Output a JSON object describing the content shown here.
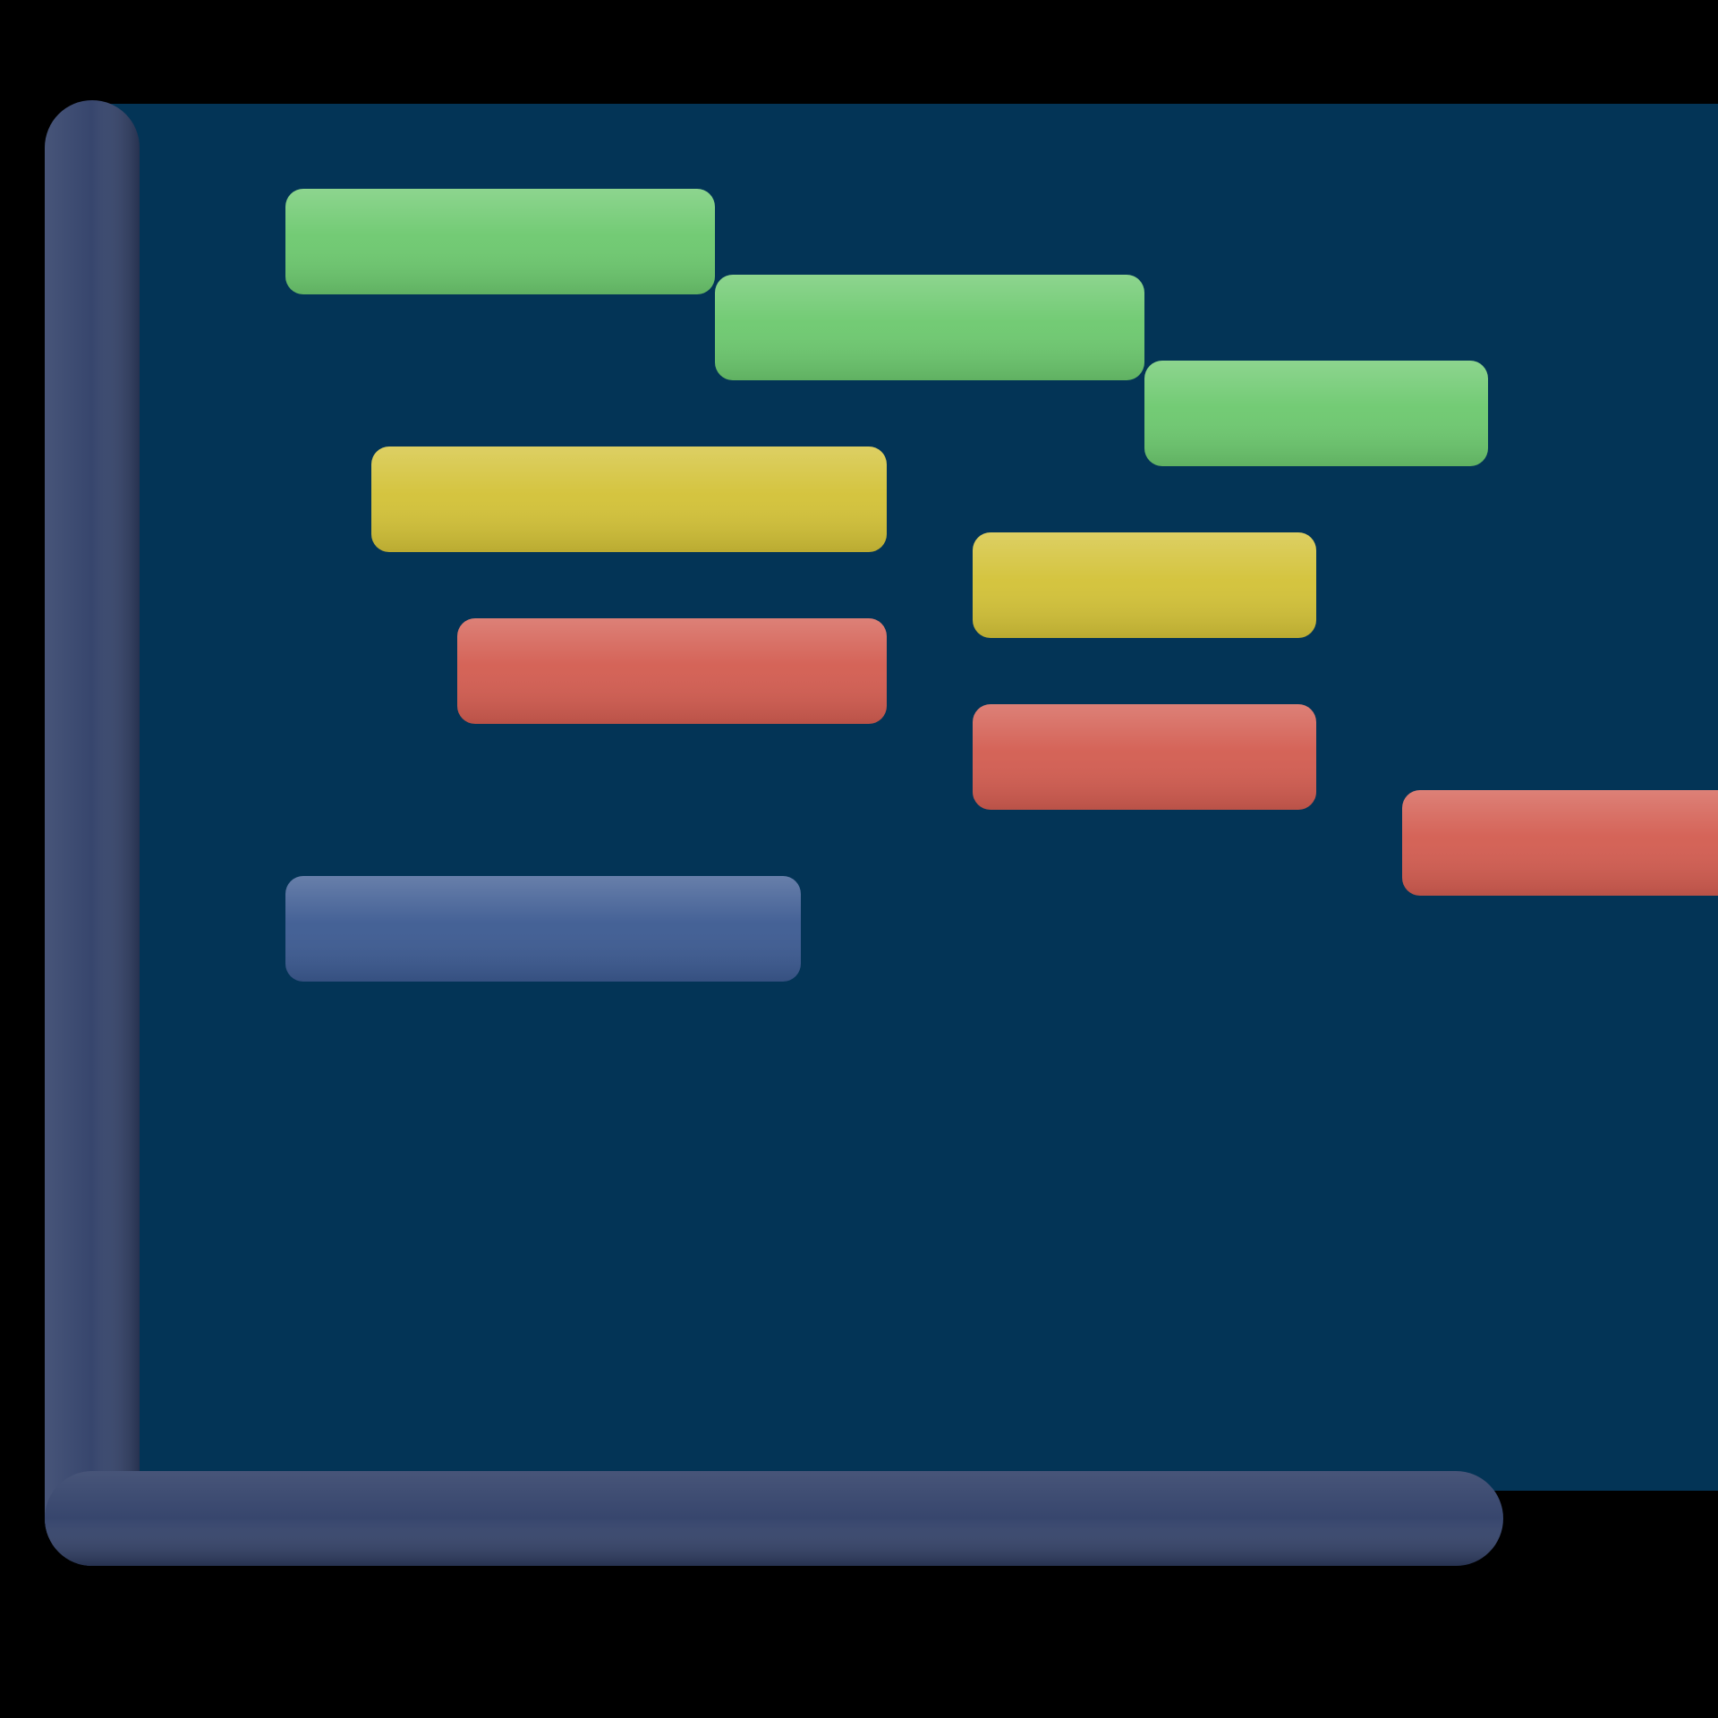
{
  "icon": {
    "name": "gantt-chart-icon",
    "style": "3d-glossy"
  },
  "colors": {
    "background": "#000000",
    "panel": "#033456",
    "axis": "#33426a",
    "axis_highlight": "#4a5d8a"
  },
  "chart_data": {
    "type": "bar",
    "orientation": "horizontal",
    "kind": "gantt",
    "title": "",
    "xlabel": "",
    "ylabel": "",
    "xlim": [
      0,
      15
    ],
    "ylim": [
      0,
      15
    ],
    "grid": false,
    "legend": "none",
    "tasks": [
      {
        "row": 1,
        "start": 1.0,
        "end": 6.0,
        "color": "#6dc96f"
      },
      {
        "row": 2,
        "start": 6.0,
        "end": 11.0,
        "color": "#6dc96f"
      },
      {
        "row": 3,
        "start": 11.0,
        "end": 15.0,
        "color": "#6dc96f"
      },
      {
        "row": 4,
        "start": 2.0,
        "end": 8.0,
        "color": "#d3c238"
      },
      {
        "row": 5,
        "start": 9.0,
        "end": 13.0,
        "color": "#d3c238"
      },
      {
        "row": 6,
        "start": 3.0,
        "end": 8.0,
        "color": "#d35d51"
      },
      {
        "row": 7,
        "start": 9.0,
        "end": 13.0,
        "color": "#d35d51"
      },
      {
        "row": 8,
        "start": 14.0,
        "end": 18.0,
        "color": "#d35d51"
      },
      {
        "row": 9,
        "start": 1.0,
        "end": 7.0,
        "color": "#3d5b92"
      }
    ]
  }
}
